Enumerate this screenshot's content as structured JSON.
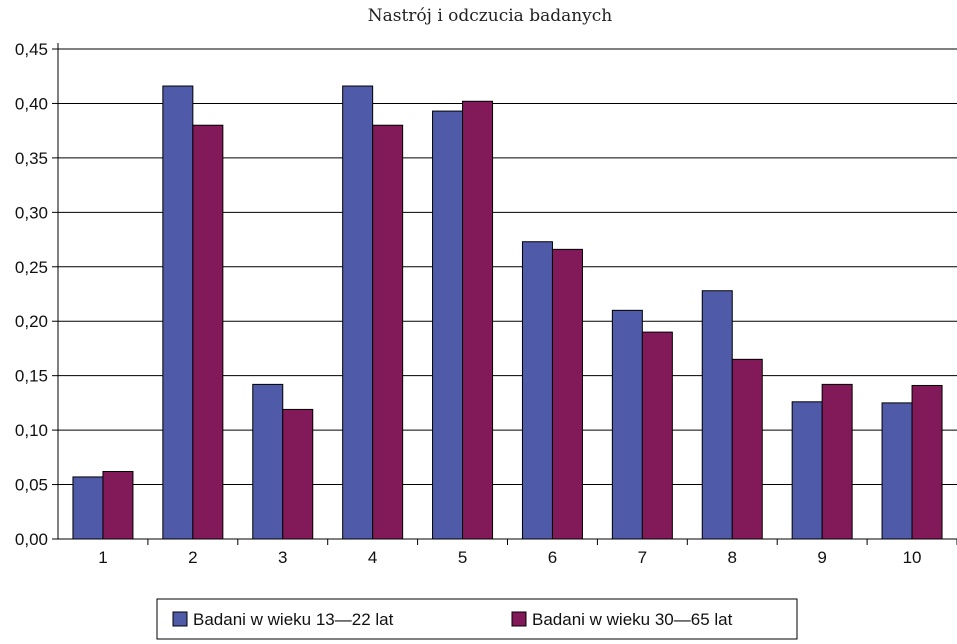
{
  "chart_data": {
    "type": "bar",
    "title": "Nastrój i odczucia badanych",
    "xlabel": "",
    "ylabel": "",
    "categories": [
      "1",
      "2",
      "3",
      "4",
      "5",
      "6",
      "7",
      "8",
      "9",
      "10"
    ],
    "series": [
      {
        "name": "Badani w wieku 13—22 lat",
        "color": "#4f5aa9",
        "values": [
          0.057,
          0.416,
          0.142,
          0.416,
          0.393,
          0.273,
          0.21,
          0.228,
          0.126,
          0.125
        ]
      },
      {
        "name": "Badani w wieku 30—65 lat",
        "color": "#821a5a",
        "values": [
          0.062,
          0.38,
          0.119,
          0.38,
          0.402,
          0.266,
          0.19,
          0.165,
          0.142,
          0.141
        ]
      }
    ],
    "ylim": [
      0,
      0.45
    ],
    "yticks": [
      "0,00",
      "0,05",
      "0,10",
      "0,15",
      "0,20",
      "0,25",
      "0,30",
      "0,35",
      "0,40",
      "0,45"
    ],
    "grid": true,
    "legend_position": "bottom"
  }
}
